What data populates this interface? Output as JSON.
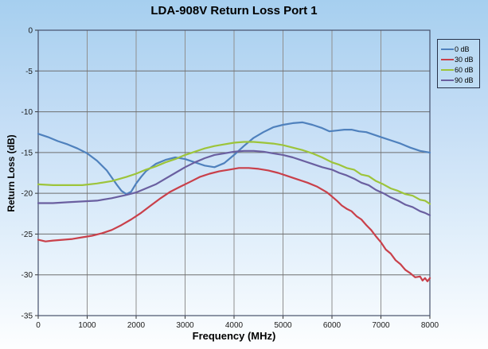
{
  "window": {
    "kind": "measurement-chart-screenshot"
  },
  "chart_data": {
    "type": "line",
    "title": "LDA-908V Return Loss Port 1",
    "xlabel": "Frequency (MHz)",
    "ylabel": "Return Loss (dB)",
    "xlim": [
      0,
      8000
    ],
    "ylim": [
      -35,
      0
    ],
    "xticks": [
      0,
      1000,
      2000,
      3000,
      4000,
      5000,
      6000,
      7000,
      8000
    ],
    "yticks": [
      0,
      -5,
      -10,
      -15,
      -20,
      -25,
      -30,
      -35
    ],
    "grid": true,
    "legend_position": "outside-right",
    "series": [
      {
        "name": "0 dB",
        "color": "#4f81bd",
        "points": [
          [
            0,
            -12.7
          ],
          [
            200,
            -13.1
          ],
          [
            400,
            -13.6
          ],
          [
            600,
            -14.0
          ],
          [
            800,
            -14.5
          ],
          [
            1000,
            -15.1
          ],
          [
            1200,
            -16.0
          ],
          [
            1400,
            -17.2
          ],
          [
            1600,
            -18.9
          ],
          [
            1700,
            -19.7
          ],
          [
            1800,
            -20.1
          ],
          [
            1900,
            -19.8
          ],
          [
            2000,
            -18.8
          ],
          [
            2100,
            -18.0
          ],
          [
            2200,
            -17.3
          ],
          [
            2400,
            -16.4
          ],
          [
            2600,
            -15.9
          ],
          [
            2800,
            -15.6
          ],
          [
            3000,
            -15.8
          ],
          [
            3200,
            -16.2
          ],
          [
            3400,
            -16.6
          ],
          [
            3600,
            -16.8
          ],
          [
            3800,
            -16.3
          ],
          [
            4000,
            -15.3
          ],
          [
            4200,
            -14.2
          ],
          [
            4400,
            -13.2
          ],
          [
            4600,
            -12.5
          ],
          [
            4800,
            -11.9
          ],
          [
            5000,
            -11.6
          ],
          [
            5200,
            -11.4
          ],
          [
            5400,
            -11.3
          ],
          [
            5600,
            -11.6
          ],
          [
            5800,
            -12.0
          ],
          [
            5950,
            -12.4
          ],
          [
            6100,
            -12.3
          ],
          [
            6250,
            -12.2
          ],
          [
            6400,
            -12.2
          ],
          [
            6550,
            -12.4
          ],
          [
            6700,
            -12.5
          ],
          [
            6850,
            -12.8
          ],
          [
            7000,
            -13.1
          ],
          [
            7200,
            -13.5
          ],
          [
            7400,
            -13.9
          ],
          [
            7600,
            -14.4
          ],
          [
            7800,
            -14.8
          ],
          [
            8000,
            -15.0
          ]
        ]
      },
      {
        "name": "30 dB",
        "color": "#c9404a",
        "points": [
          [
            0,
            -25.7
          ],
          [
            150,
            -25.9
          ],
          [
            300,
            -25.8
          ],
          [
            500,
            -25.7
          ],
          [
            700,
            -25.6
          ],
          [
            900,
            -25.4
          ],
          [
            1100,
            -25.2
          ],
          [
            1300,
            -24.9
          ],
          [
            1500,
            -24.5
          ],
          [
            1700,
            -23.9
          ],
          [
            1900,
            -23.2
          ],
          [
            2100,
            -22.4
          ],
          [
            2300,
            -21.5
          ],
          [
            2500,
            -20.6
          ],
          [
            2700,
            -19.8
          ],
          [
            2900,
            -19.2
          ],
          [
            3100,
            -18.6
          ],
          [
            3300,
            -18.0
          ],
          [
            3500,
            -17.6
          ],
          [
            3700,
            -17.3
          ],
          [
            3900,
            -17.1
          ],
          [
            4100,
            -16.9
          ],
          [
            4300,
            -16.9
          ],
          [
            4500,
            -17.0
          ],
          [
            4700,
            -17.2
          ],
          [
            4900,
            -17.5
          ],
          [
            5100,
            -17.9
          ],
          [
            5300,
            -18.3
          ],
          [
            5500,
            -18.7
          ],
          [
            5700,
            -19.2
          ],
          [
            5900,
            -19.9
          ],
          [
            6000,
            -20.4
          ],
          [
            6100,
            -20.9
          ],
          [
            6200,
            -21.5
          ],
          [
            6300,
            -21.9
          ],
          [
            6400,
            -22.2
          ],
          [
            6500,
            -22.8
          ],
          [
            6600,
            -23.2
          ],
          [
            6700,
            -23.9
          ],
          [
            6800,
            -24.5
          ],
          [
            6900,
            -25.3
          ],
          [
            7000,
            -26.0
          ],
          [
            7100,
            -26.9
          ],
          [
            7200,
            -27.4
          ],
          [
            7300,
            -28.2
          ],
          [
            7400,
            -28.7
          ],
          [
            7500,
            -29.4
          ],
          [
            7600,
            -29.8
          ],
          [
            7700,
            -30.3
          ],
          [
            7800,
            -30.2
          ],
          [
            7850,
            -30.7
          ],
          [
            7900,
            -30.4
          ],
          [
            7950,
            -30.8
          ],
          [
            8000,
            -30.4
          ]
        ]
      },
      {
        "name": "60 dB",
        "color": "#9dc43a",
        "points": [
          [
            0,
            -18.9
          ],
          [
            300,
            -19.0
          ],
          [
            600,
            -19.0
          ],
          [
            900,
            -19.0
          ],
          [
            1200,
            -18.8
          ],
          [
            1500,
            -18.5
          ],
          [
            1800,
            -18.0
          ],
          [
            2000,
            -17.6
          ],
          [
            2200,
            -17.1
          ],
          [
            2400,
            -16.7
          ],
          [
            2600,
            -16.2
          ],
          [
            2800,
            -15.8
          ],
          [
            3000,
            -15.3
          ],
          [
            3200,
            -14.9
          ],
          [
            3400,
            -14.5
          ],
          [
            3600,
            -14.2
          ],
          [
            3800,
            -14.0
          ],
          [
            4000,
            -13.8
          ],
          [
            4200,
            -13.7
          ],
          [
            4400,
            -13.7
          ],
          [
            4600,
            -13.8
          ],
          [
            4800,
            -13.9
          ],
          [
            5000,
            -14.1
          ],
          [
            5200,
            -14.4
          ],
          [
            5400,
            -14.7
          ],
          [
            5600,
            -15.1
          ],
          [
            5800,
            -15.6
          ],
          [
            6000,
            -16.2
          ],
          [
            6150,
            -16.5
          ],
          [
            6300,
            -16.9
          ],
          [
            6450,
            -17.1
          ],
          [
            6600,
            -17.7
          ],
          [
            6750,
            -17.9
          ],
          [
            6900,
            -18.5
          ],
          [
            7050,
            -18.9
          ],
          [
            7200,
            -19.4
          ],
          [
            7350,
            -19.7
          ],
          [
            7500,
            -20.1
          ],
          [
            7650,
            -20.3
          ],
          [
            7800,
            -20.8
          ],
          [
            7900,
            -20.9
          ],
          [
            8000,
            -21.3
          ]
        ]
      },
      {
        "name": "90 dB",
        "color": "#6a5fa0",
        "points": [
          [
            0,
            -21.2
          ],
          [
            300,
            -21.2
          ],
          [
            600,
            -21.1
          ],
          [
            900,
            -21.0
          ],
          [
            1200,
            -20.9
          ],
          [
            1500,
            -20.6
          ],
          [
            1800,
            -20.2
          ],
          [
            2000,
            -19.9
          ],
          [
            2200,
            -19.4
          ],
          [
            2400,
            -18.9
          ],
          [
            2600,
            -18.2
          ],
          [
            2800,
            -17.5
          ],
          [
            3000,
            -16.8
          ],
          [
            3200,
            -16.2
          ],
          [
            3400,
            -15.7
          ],
          [
            3600,
            -15.3
          ],
          [
            3800,
            -15.1
          ],
          [
            4000,
            -14.9
          ],
          [
            4200,
            -14.8
          ],
          [
            4400,
            -14.8
          ],
          [
            4600,
            -14.9
          ],
          [
            4800,
            -15.1
          ],
          [
            5000,
            -15.3
          ],
          [
            5200,
            -15.6
          ],
          [
            5400,
            -16.0
          ],
          [
            5600,
            -16.4
          ],
          [
            5800,
            -16.8
          ],
          [
            6000,
            -17.1
          ],
          [
            6150,
            -17.5
          ],
          [
            6300,
            -17.8
          ],
          [
            6450,
            -18.2
          ],
          [
            6600,
            -18.7
          ],
          [
            6750,
            -19.0
          ],
          [
            6900,
            -19.6
          ],
          [
            7050,
            -20.0
          ],
          [
            7200,
            -20.5
          ],
          [
            7350,
            -20.9
          ],
          [
            7500,
            -21.4
          ],
          [
            7650,
            -21.7
          ],
          [
            7800,
            -22.2
          ],
          [
            7900,
            -22.4
          ],
          [
            8000,
            -22.7
          ]
        ]
      }
    ],
    "style": {
      "plot_border_color": "#46506b",
      "h_gridline_color": "#6e6e6e",
      "v_gridline_color": "#8f8f8f",
      "tick_color": "#333333",
      "tick_label_color": "#1a1a1a"
    }
  }
}
